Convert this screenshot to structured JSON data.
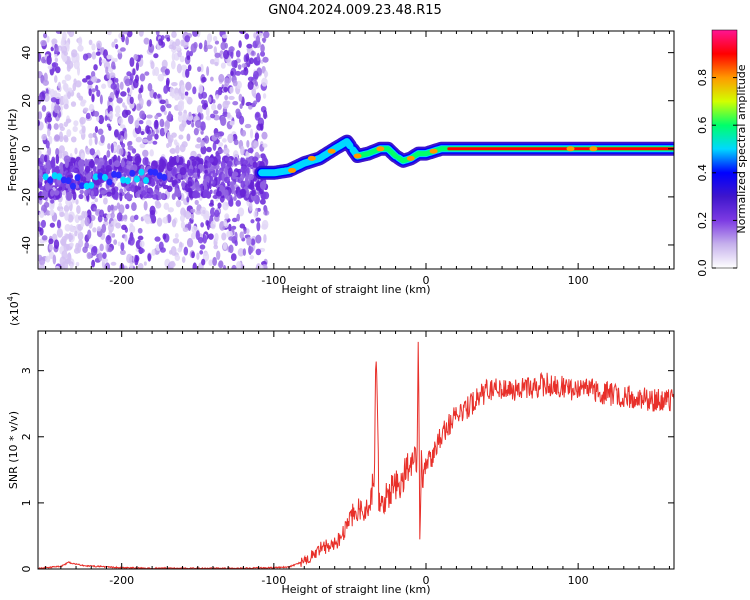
{
  "title": "GN04.2024.009.23.48.R15",
  "chart_data": [
    {
      "type": "heatmap",
      "xlabel": "Height of straight line (km)",
      "ylabel": "Frequency (Hz)",
      "xlim": [
        -255,
        163
      ],
      "ylim": [
        -50,
        49
      ],
      "xticks": [
        -200,
        -100,
        0,
        100
      ],
      "yticks": [
        -40,
        -20,
        0,
        20,
        40
      ],
      "colorbar": {
        "label": "Normalized spectral amplitude",
        "range": [
          0,
          1
        ],
        "ticks": [
          "0.0",
          "0.2",
          "0.4",
          "0.6",
          "0.8"
        ],
        "colormap": [
          "#ffffff",
          "#c6b1ec",
          "#7d3be3",
          "#3f16cc",
          "#0000ff",
          "#00d8ff",
          "#00ff6a",
          "#d2ff00",
          "#ff9900",
          "#ff0000",
          "#ff1493"
        ]
      },
      "ridge": {
        "x": [
          -250,
          -230,
          -210,
          -190,
          -170,
          -150,
          -130,
          -110,
          -100,
          -90,
          -80,
          -70,
          -60,
          -52,
          -45,
          -38,
          -30,
          -25,
          -20,
          -15,
          -10,
          -5,
          0,
          5,
          10,
          20,
          40,
          60,
          80,
          100,
          120,
          140,
          163
        ],
        "y": [
          -12,
          -14,
          -13,
          -11,
          -12,
          -11,
          -10,
          -10,
          -10,
          -9,
          -6,
          -4,
          0,
          3,
          -3,
          -2,
          0,
          0,
          -3,
          -5,
          -4,
          -2,
          -2,
          -1,
          0,
          0,
          0,
          0,
          0,
          0,
          0,
          0,
          0
        ]
      },
      "noise_band_x": [
        -255,
        -105
      ]
    },
    {
      "type": "line",
      "xlabel": "Height of straight line (km)",
      "ylabel": "SNR (10 * v/v)",
      "multiplier_label": "(x10",
      "multiplier_exp": "4",
      "multiplier_close": ")",
      "xlim": [
        -255,
        163
      ],
      "ylim": [
        0,
        3.6
      ],
      "xticks": [
        -200,
        -100,
        0,
        100
      ],
      "yticks": [
        0,
        1,
        2,
        3
      ],
      "series": [
        {
          "color": "#e8302a",
          "x": [
            -255,
            -240,
            -235,
            -225,
            -200,
            -180,
            -150,
            -120,
            -100,
            -90,
            -80,
            -70,
            -60,
            -55,
            -50,
            -45,
            -42,
            -40,
            -37,
            -34,
            -33,
            -32,
            -31,
            -30,
            -25,
            -20,
            -15,
            -12,
            -10,
            -8,
            -6,
            -5,
            -4,
            -3,
            -2,
            0,
            5,
            10,
            15,
            20,
            25,
            30,
            35,
            40,
            45,
            50,
            60,
            70,
            80,
            90,
            100,
            110,
            120,
            130,
            140,
            150,
            163
          ],
          "y": [
            0.01,
            0.04,
            0.1,
            0.05,
            0.02,
            0.01,
            0.01,
            0.01,
            0.02,
            0.03,
            0.12,
            0.3,
            0.4,
            0.5,
            0.75,
            0.9,
            0.95,
            0.85,
            1.0,
            1.3,
            3.1,
            2.7,
            1.0,
            1.1,
            1.05,
            1.3,
            1.4,
            1.5,
            1.55,
            1.7,
            1.6,
            3.55,
            0.3,
            1.7,
            1.4,
            1.6,
            1.75,
            2.05,
            2.2,
            2.3,
            2.4,
            2.5,
            2.6,
            2.7,
            2.75,
            2.75,
            2.7,
            2.75,
            2.8,
            2.75,
            2.7,
            2.7,
            2.65,
            2.6,
            2.6,
            2.55,
            2.55
          ]
        }
      ]
    }
  ]
}
